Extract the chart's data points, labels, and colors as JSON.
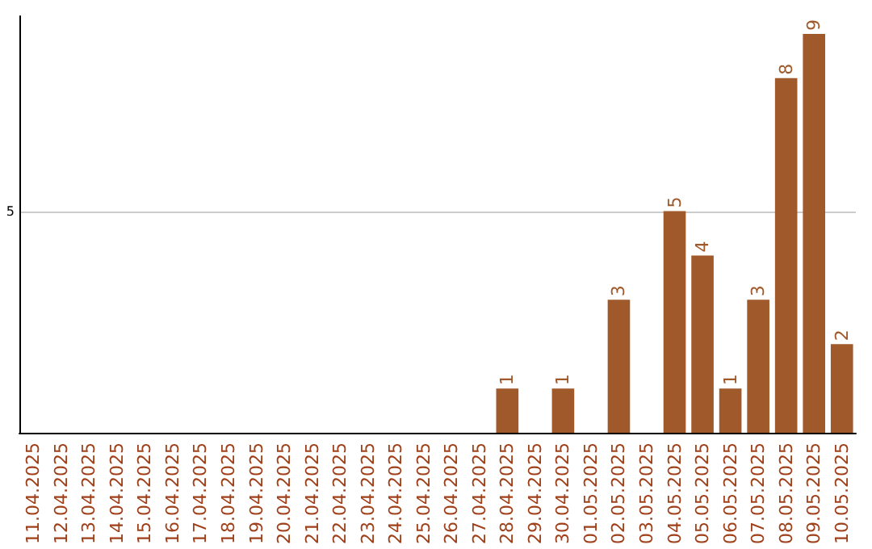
{
  "chart_data": {
    "type": "bar",
    "categories": [
      "11.04.2025",
      "12.04.2025",
      "13.04.2025",
      "14.04.2025",
      "15.04.2025",
      "16.04.2025",
      "17.04.2025",
      "18.04.2025",
      "19.04.2025",
      "20.04.2025",
      "21.04.2025",
      "22.04.2025",
      "23.04.2025",
      "24.04.2025",
      "25.04.2025",
      "26.04.2025",
      "27.04.2025",
      "28.04.2025",
      "29.04.2025",
      "30.04.2025",
      "01.05.2025",
      "02.05.2025",
      "03.05.2025",
      "04.05.2025",
      "05.05.2025",
      "06.05.2025",
      "07.05.2025",
      "08.05.2025",
      "09.05.2025",
      "10.05.2025"
    ],
    "values": [
      null,
      null,
      null,
      null,
      null,
      null,
      null,
      null,
      null,
      null,
      null,
      null,
      null,
      null,
      null,
      null,
      null,
      1,
      null,
      1,
      null,
      3,
      null,
      5,
      4,
      1,
      3,
      8,
      9,
      2
    ],
    "value_labels": [
      null,
      null,
      null,
      null,
      null,
      null,
      null,
      null,
      null,
      null,
      null,
      null,
      null,
      null,
      null,
      null,
      null,
      "1",
      null,
      "1",
      null,
      "3",
      null,
      "5",
      "4",
      "1",
      "3",
      "8",
      "9",
      "2"
    ],
    "color": "#a0592a",
    "ylim": [
      0,
      9.4
    ],
    "yticks": [
      5
    ],
    "grid": "y"
  }
}
